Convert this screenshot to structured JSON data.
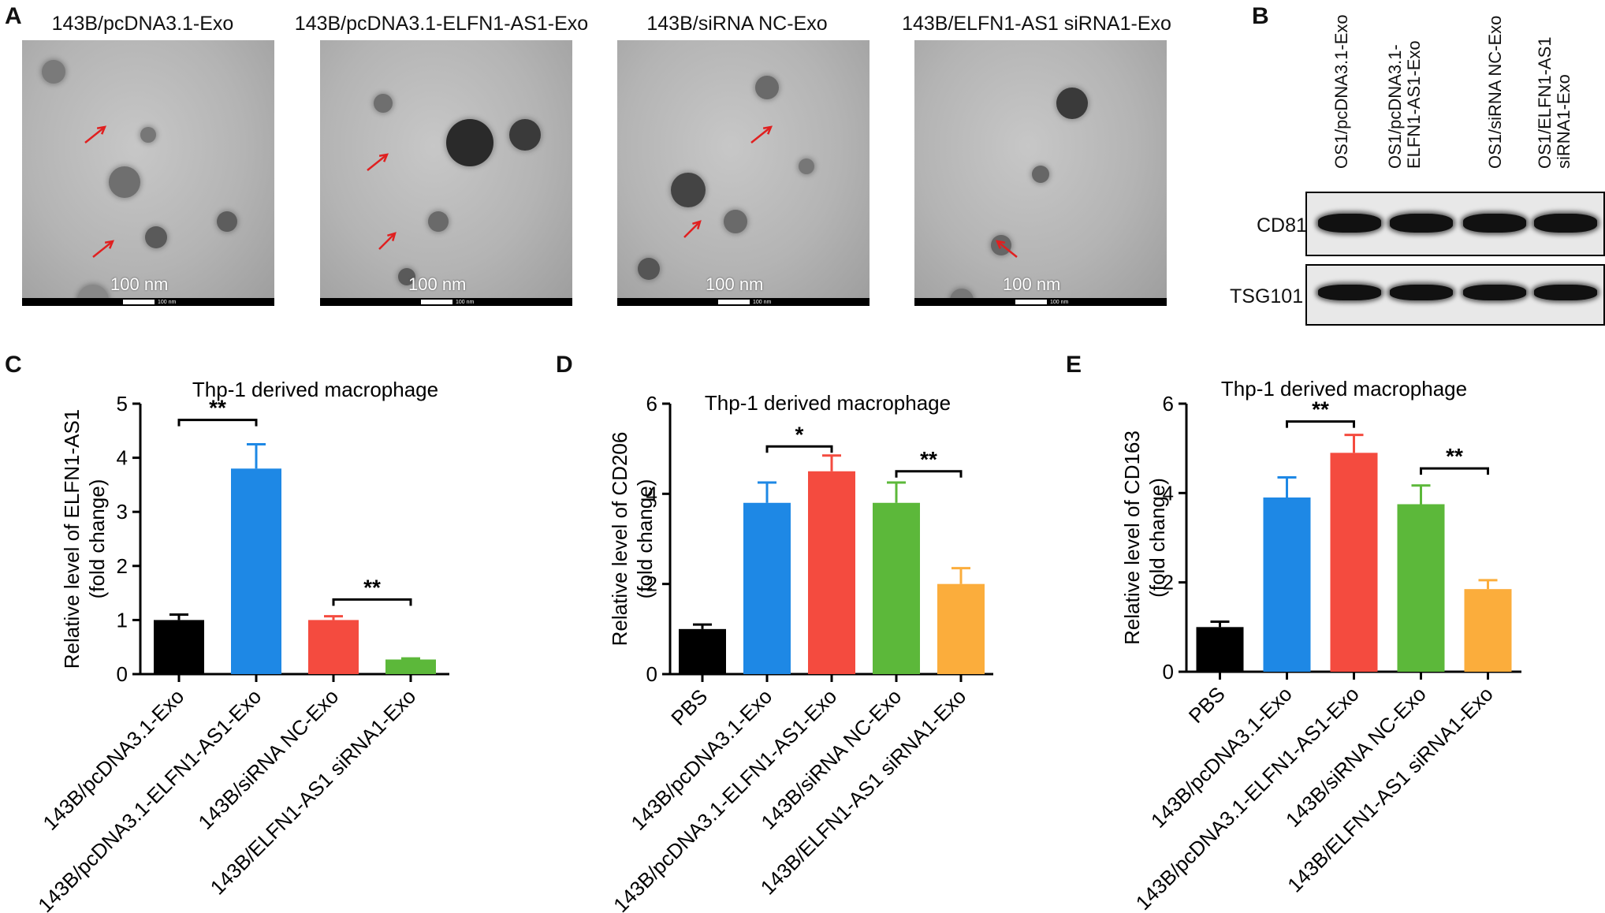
{
  "panels": {
    "a": "A",
    "b": "B",
    "c": "C",
    "d": "D",
    "e": "E"
  },
  "tem": {
    "titles": [
      "143B/pcDNA3.1-Exo",
      "143B/pcDNA3.1-ELFN1-AS1-Exo",
      "143B/siRNA NC-Exo",
      "143B/ELFN1-AS1 siRNA1-Exo"
    ],
    "scale_label": "100 nm",
    "scale_tiny": "100 nm"
  },
  "western": {
    "lanes": [
      [
        "OS1/pcDNA3.1-Exo"
      ],
      [
        "OS1/pcDNA3.1-",
        "ELFN1-AS1-Exo"
      ],
      [
        "OS1/siRNA NC-Exo"
      ],
      [
        "OS1/ELFN1-AS1",
        "siRNA1-Exo"
      ]
    ],
    "blots": [
      "CD81",
      "TSG101"
    ]
  },
  "chart_data": [
    {
      "type": "bar",
      "panel": "C",
      "title": "Thp-1 derived macrophage",
      "ylabel": "Relative level of ELFN1-AS1\n(fold change)",
      "ylim": [
        0,
        5
      ],
      "yticks": [
        0,
        1,
        2,
        3,
        4,
        5
      ],
      "categories": [
        "143B/pcDNA3.1-Exo",
        "143B/pcDNA3.1-ELFN1-AS1-Exo",
        "143B/siRNA NC-Exo",
        "143B/ELFN1-AS1 siRNA1-Exo"
      ],
      "values": [
        1.0,
        3.8,
        1.0,
        0.27
      ],
      "errors": [
        0.1,
        0.45,
        0.07,
        0.02
      ],
      "colors": [
        "#000000",
        "#1e88e5",
        "#f44b3f",
        "#5cb83a"
      ],
      "significance": [
        {
          "from": 0,
          "to": 1,
          "label": "**",
          "y": 4.7
        },
        {
          "from": 2,
          "to": 3,
          "label": "**",
          "y": 1.38
        }
      ]
    },
    {
      "type": "bar",
      "panel": "D",
      "title": "Thp-1 derived macrophage",
      "ylabel": "Relative level of CD206\n(fold change)",
      "ylim": [
        0,
        6
      ],
      "yticks": [
        0,
        2,
        4,
        6
      ],
      "categories": [
        "PBS",
        "143B/pcDNA3.1-Exo",
        "143B/pcDNA3.1-ELFN1-AS1-Exo",
        "143B/siRNA NC-Exo",
        "143B/ELFN1-AS1 siRNA1-Exo"
      ],
      "values": [
        1.0,
        3.8,
        4.5,
        3.8,
        2.0
      ],
      "errors": [
        0.1,
        0.45,
        0.35,
        0.45,
        0.35
      ],
      "colors": [
        "#000000",
        "#1e88e5",
        "#f44b3f",
        "#5cb83a",
        "#fbad3c"
      ],
      "significance": [
        {
          "from": 1,
          "to": 2,
          "label": "*",
          "y": 5.05
        },
        {
          "from": 3,
          "to": 4,
          "label": "**",
          "y": 4.5
        }
      ]
    },
    {
      "type": "bar",
      "panel": "E",
      "title": "Thp-1 derived macrophage",
      "ylabel": "Relative level of CD163\n(fold change)",
      "ylim": [
        0,
        6
      ],
      "yticks": [
        0,
        2,
        4,
        6
      ],
      "categories": [
        "PBS",
        "143B/pcDNA3.1-Exo",
        "143B/pcDNA3.1-ELFN1-AS1-Exo",
        "143B/siRNA NC-Exo",
        "143B/ELFN1-AS1 siRNA1-Exo"
      ],
      "values": [
        1.0,
        3.9,
        4.9,
        3.75,
        1.85
      ],
      "errors": [
        0.12,
        0.45,
        0.4,
        0.42,
        0.2
      ],
      "colors": [
        "#000000",
        "#1e88e5",
        "#f44b3f",
        "#5cb83a",
        "#fbad3c"
      ],
      "significance": [
        {
          "from": 1,
          "to": 2,
          "label": "**",
          "y": 5.6
        },
        {
          "from": 3,
          "to": 4,
          "label": "**",
          "y": 4.55
        }
      ]
    }
  ]
}
